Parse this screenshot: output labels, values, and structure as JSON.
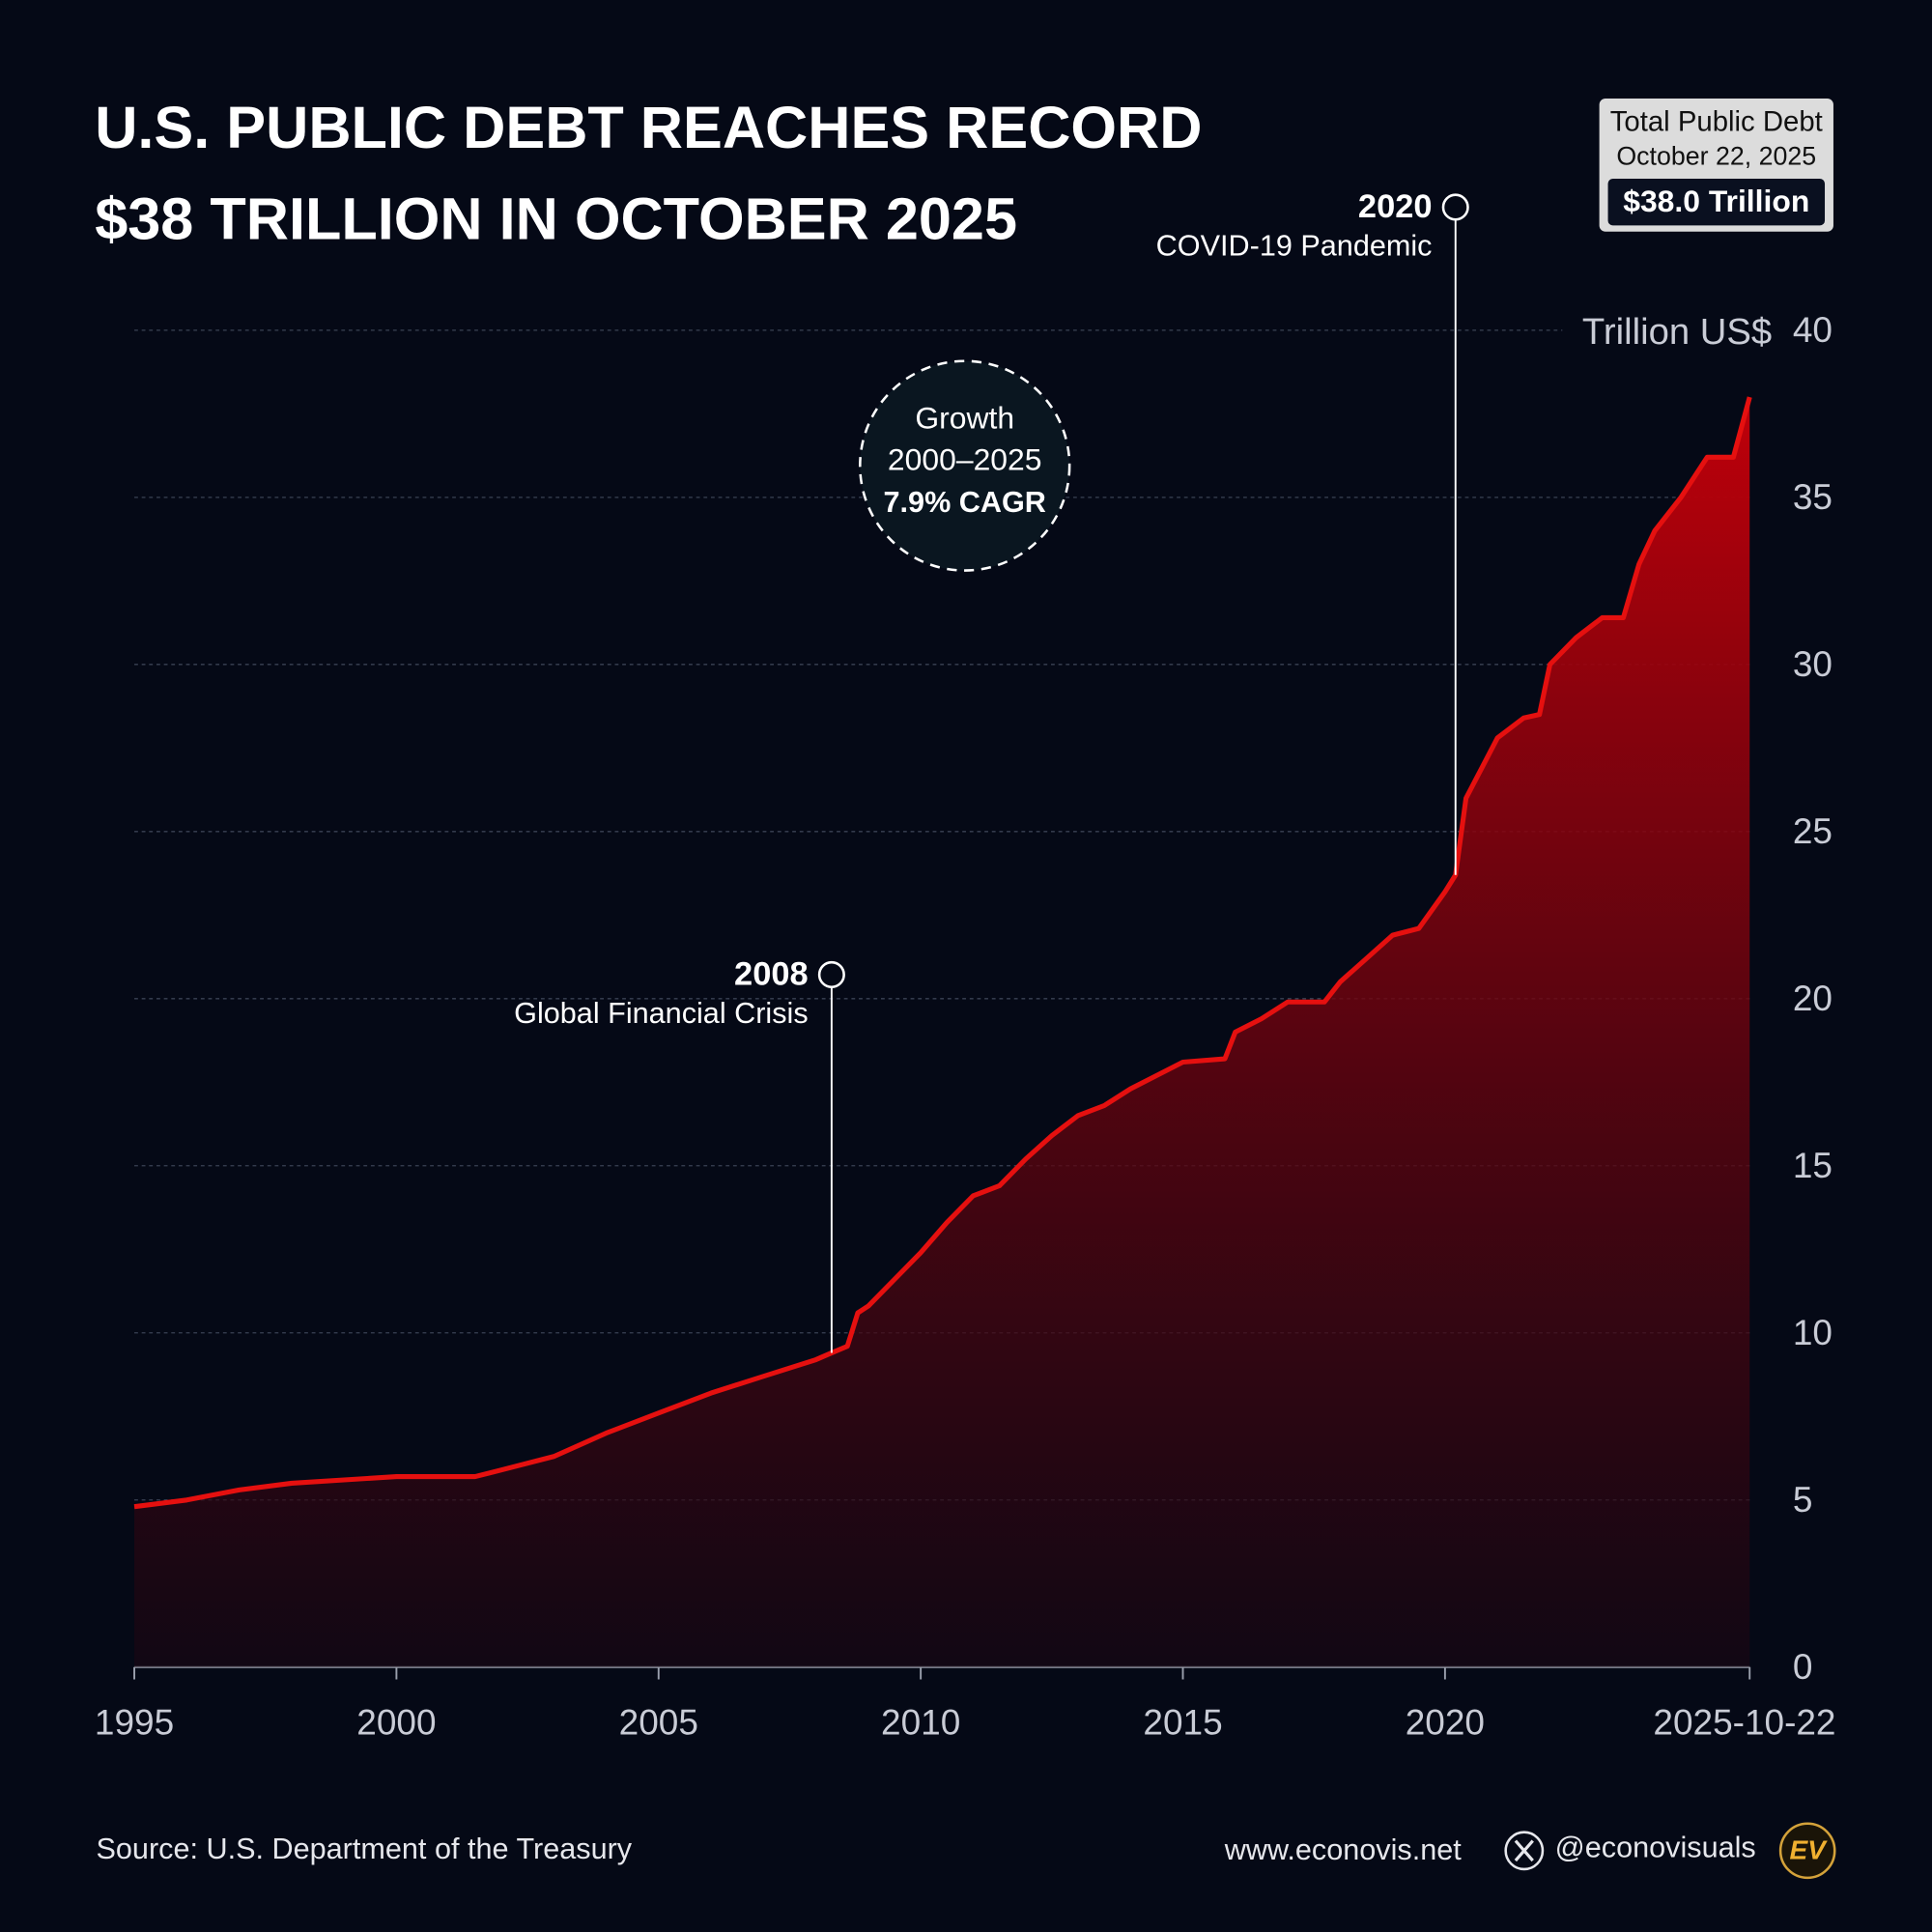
{
  "chart_data": {
    "type": "area",
    "title_lines": [
      "U.S. PUBLIC DEBT REACHES RECORD",
      "$38 TRILLION IN OCTOBER 2025"
    ],
    "info_box": {
      "label": "Total Public Debt",
      "date": "October 22, 2025",
      "value": "$38.0 Trillion"
    },
    "y_label": "Trillion US$",
    "growth_note": [
      "Growth",
      "2000–2025",
      "7.9% CAGR"
    ],
    "color": "#e5100f",
    "x": [
      1995,
      1996,
      1997,
      1998,
      1999,
      2000,
      2000.7,
      2001,
      2001.5,
      2002,
      2003,
      2004,
      2005,
      2006,
      2007,
      2008,
      2008.3,
      2008.6,
      2008.8,
      2009,
      2009.5,
      2010,
      2010.5,
      2011,
      2011.5,
      2012,
      2012.5,
      2013,
      2013.5,
      2014,
      2014.5,
      2015,
      2015.8,
      2016,
      2016.5,
      2017,
      2017.7,
      2018,
      2018.5,
      2019,
      2019.5,
      2020,
      2020.2,
      2020.4,
      2020.7,
      2021,
      2021.5,
      2021.8,
      2022,
      2022.5,
      2023,
      2023.4,
      2023.7,
      2024,
      2024.5,
      2025,
      2025.5,
      2025.81
    ],
    "values": [
      4.8,
      5.0,
      5.3,
      5.5,
      5.6,
      5.7,
      5.7,
      5.7,
      5.7,
      5.9,
      6.3,
      7.0,
      7.6,
      8.2,
      8.7,
      9.2,
      9.4,
      9.6,
      10.6,
      10.8,
      11.6,
      12.4,
      13.3,
      14.1,
      14.4,
      15.2,
      15.9,
      16.5,
      16.8,
      17.3,
      17.7,
      18.1,
      18.2,
      19.0,
      19.4,
      19.9,
      19.9,
      20.5,
      21.2,
      21.9,
      22.1,
      23.2,
      23.7,
      26.0,
      26.9,
      27.8,
      28.4,
      28.5,
      30.0,
      30.8,
      31.4,
      31.4,
      33.0,
      34.0,
      35.0,
      36.2,
      36.2,
      38.0
    ],
    "xlim": [
      1995,
      2025.81
    ],
    "xticks": [
      1995,
      2000,
      2005,
      2010,
      2015,
      2020,
      {
        "value": 2025.81,
        "label": "2025-10-22"
      }
    ],
    "ylim": [
      0,
      40
    ],
    "yticks": [
      0,
      5,
      10,
      15,
      20,
      25,
      30,
      35,
      40
    ],
    "grid": true,
    "annotations": [
      {
        "x": 2008.3,
        "y": 9.4,
        "year": "2008",
        "label": "Global Financial Crisis"
      },
      {
        "x": 2020.2,
        "y": 23.7,
        "year": "2020",
        "label": "COVID-19 Pandemic"
      }
    ],
    "source": "Source: U.S. Department of the Treasury",
    "website": "www.econovis.net",
    "handle": "@econovisuals",
    "logo": "EV"
  }
}
